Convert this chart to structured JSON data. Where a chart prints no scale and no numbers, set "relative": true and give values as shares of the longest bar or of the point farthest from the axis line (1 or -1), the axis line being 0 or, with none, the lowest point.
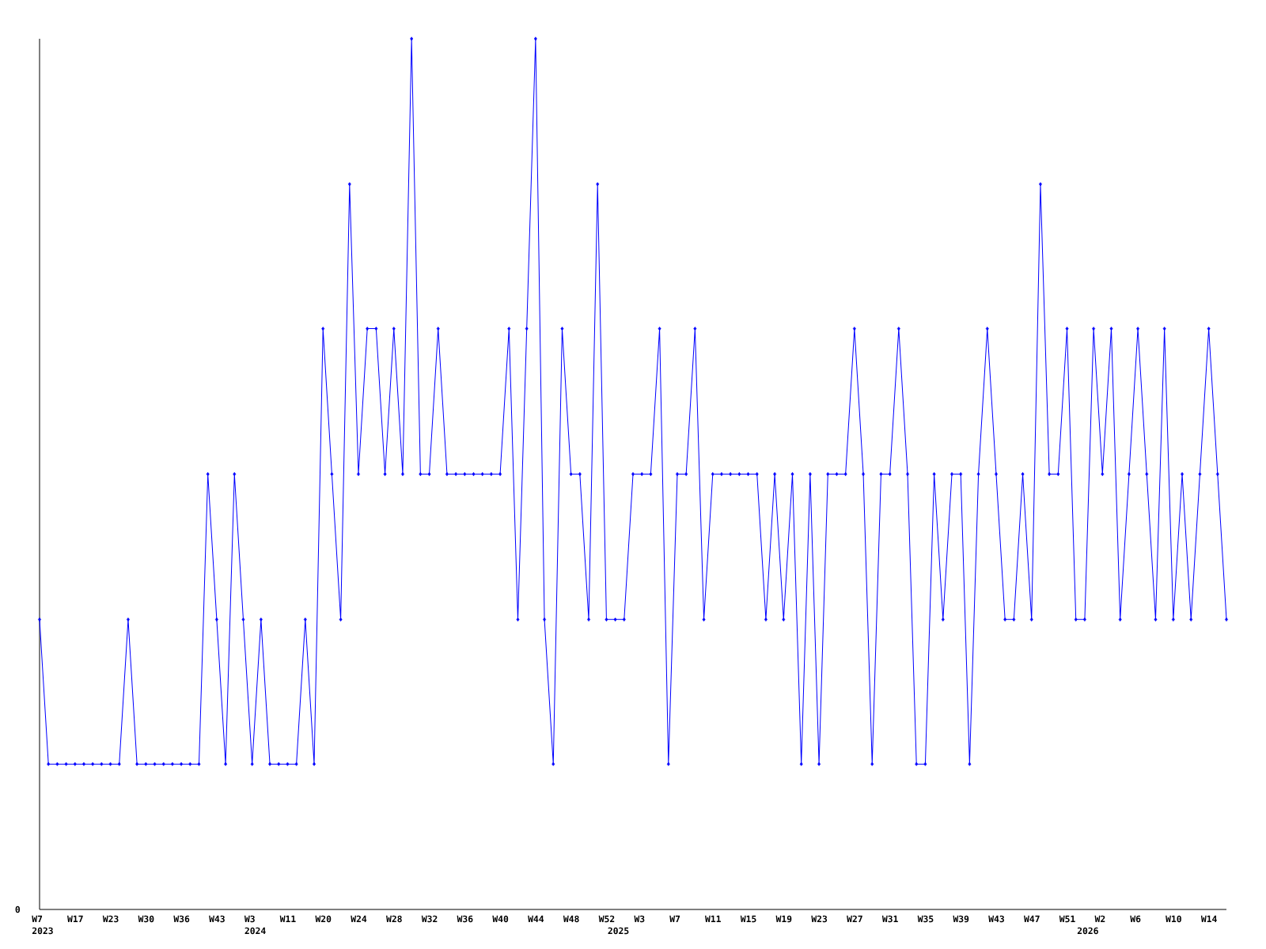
{
  "chart_data": {
    "type": "line",
    "relative": true,
    "color": "#0000ff",
    "marker": "diamond",
    "line_style": "solid",
    "annotations": [
      "0"
    ],
    "categories": [
      "W7\n2023",
      null,
      null,
      null,
      "W17",
      null,
      null,
      null,
      "W23",
      null,
      null,
      null,
      "W30",
      null,
      null,
      null,
      "W36",
      null,
      null,
      null,
      "W43",
      null,
      null,
      null,
      "W3\n2024",
      null,
      null,
      null,
      "W11",
      null,
      null,
      null,
      "W20",
      null,
      null,
      null,
      "W24",
      null,
      null,
      null,
      "W28",
      null,
      null,
      null,
      "W32",
      null,
      null,
      null,
      "W36",
      null,
      null,
      null,
      "W40",
      null,
      null,
      null,
      "W44",
      null,
      null,
      null,
      "W48",
      null,
      null,
      null,
      "W52",
      "\n2025",
      null,
      null,
      "W3",
      null,
      null,
      null,
      "W7",
      null,
      null,
      null,
      "W11",
      null,
      null,
      null,
      "W15",
      null,
      null,
      null,
      "W19",
      null,
      null,
      null,
      "W23",
      null,
      null,
      null,
      "W27",
      null,
      null,
      null,
      "W31",
      null,
      null,
      null,
      "W35",
      null,
      null,
      null,
      "W39",
      null,
      null,
      null,
      "W43",
      null,
      null,
      null,
      "W47",
      null,
      null,
      null,
      "W51",
      null,
      "\n2026",
      null,
      "W2",
      null,
      null,
      null,
      "W6",
      null,
      null,
      null,
      "W10",
      null,
      null,
      null,
      "W14",
      null,
      null
    ],
    "values": [
      0.333,
      0.167,
      0.167,
      0.167,
      0.167,
      0.167,
      0.167,
      0.167,
      0.167,
      0.167,
      0.333,
      0.167,
      0.167,
      0.167,
      0.167,
      0.167,
      0.167,
      0.167,
      0.167,
      0.5,
      0.333,
      0.167,
      0.5,
      0.333,
      0.167,
      0.333,
      0.167,
      0.167,
      0.167,
      0.167,
      0.333,
      0.167,
      0.667,
      0.5,
      0.333,
      0.833,
      0.5,
      0.667,
      0.667,
      0.5,
      0.667,
      0.5,
      1,
      0.5,
      0.5,
      0.667,
      0.5,
      0.5,
      0.5,
      0.5,
      0.5,
      0.5,
      0.5,
      0.667,
      0.333,
      0.667,
      1,
      0.333,
      0.167,
      0.667,
      0.5,
      0.5,
      0.333,
      0.833,
      0.333,
      0.333,
      0.333,
      0.5,
      0.5,
      0.5,
      0.667,
      0.167,
      0.5,
      0.5,
      0.667,
      0.333,
      0.5,
      0.5,
      0.5,
      0.5,
      0.5,
      0.5,
      0.333,
      0.5,
      0.333,
      0.5,
      0.167,
      0.5,
      0.167,
      0.5,
      0.5,
      0.5,
      0.667,
      0.5,
      0.167,
      0.5,
      0.5,
      0.667,
      0.5,
      0.167,
      0.167,
      0.5,
      0.333,
      0.5,
      0.5,
      0.167,
      0.5,
      0.667,
      0.5,
      0.333,
      0.333,
      0.5,
      0.333,
      0.833,
      0.5,
      0.5,
      0.667,
      0.333,
      0.333,
      0.667,
      0.5,
      0.667,
      0.333,
      0.5,
      0.667,
      0.5,
      0.333,
      0.667,
      0.333,
      0.5,
      0.333,
      0.5,
      0.667,
      0.5,
      0.333
    ]
  }
}
